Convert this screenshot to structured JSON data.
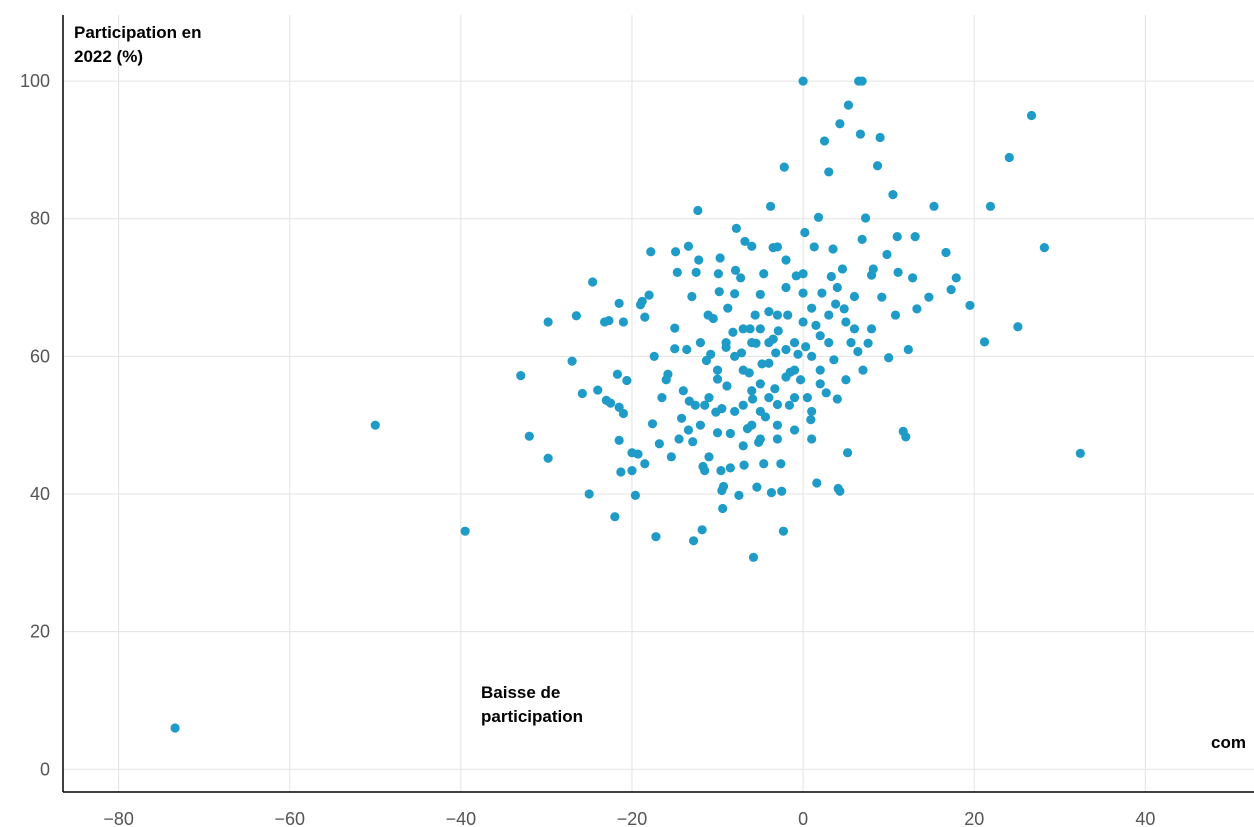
{
  "chart_data": {
    "type": "scatter",
    "y_label": [
      "Participation en",
      "2022 (%)"
    ],
    "annotations": [
      [
        "Baisse de",
        "participation"
      ],
      [
        "com"
      ]
    ],
    "color": "#1f9bc7",
    "grid": true,
    "xlim": [
      -86.5,
      52.7
    ],
    "ylim": [
      -3.3,
      109.6
    ],
    "xticks": [
      {
        "value": -80,
        "label": "−80"
      },
      {
        "value": -60,
        "label": "−60"
      },
      {
        "value": -40,
        "label": "−40"
      },
      {
        "value": -20,
        "label": "−20"
      },
      0,
      20,
      40
    ],
    "yticks": [
      0,
      20,
      40,
      60,
      80,
      100
    ],
    "x": [
      -73.4,
      -50,
      -39.5,
      -33,
      -32,
      -29.8,
      -29.8,
      -27,
      -26.5,
      -25.8,
      -25,
      -24.6,
      -24,
      -23.2,
      -23,
      -22.7,
      -22.5,
      -22,
      -21.7,
      -21.5,
      -21.5,
      -21.3,
      -21.5,
      -21,
      -21,
      -20.6,
      -20,
      -20,
      -19.6,
      -19.3,
      -19,
      -18.8,
      -18.5,
      -18.5,
      -18,
      -17.8,
      -17.6,
      -17.4,
      -17.2,
      -16.8,
      -16.5,
      -16,
      -15.8,
      -15.4,
      -15,
      -15,
      -14.9,
      -14.7,
      -14.5,
      -14.2,
      -14,
      -13.6,
      -13.4,
      -13.4,
      -13.3,
      -13,
      -12.9,
      -12.8,
      -12.6,
      -12.5,
      -12.3,
      -12.2,
      -12,
      -11.8,
      -11.7,
      -11.5,
      -11.5,
      -11.3,
      -11.1,
      -11,
      -10.8,
      -10.5,
      -10.2,
      -10,
      -10,
      -9.9,
      -9.8,
      -9.7,
      -9.6,
      -9.5,
      -9.5,
      -9.4,
      -9.3,
      -9,
      -8.9,
      -8.8,
      -8.5,
      -8.5,
      -8.2,
      -8,
      -7.9,
      -7.8,
      -7.5,
      -7.3,
      -7.2,
      -7,
      -6.9,
      -6.8,
      -6.5,
      -6.3,
      -6.2,
      -6,
      -5.9,
      -5.8,
      -5.6,
      -5.5,
      -5.4,
      -5.2,
      -5,
      -5,
      -4.8,
      -4.6,
      -4.6,
      -4.4,
      -4,
      -3.8,
      -3.7,
      -3.5,
      -3.5,
      -3.3,
      -3.2,
      -3,
      -3,
      -2.9,
      -2.6,
      -2.5,
      -2.3,
      -2.2,
      -2,
      -1.8,
      -1.6,
      -1.5,
      -1,
      -0.8,
      -0.6,
      -0.3,
      0,
      0,
      0.2,
      0.3,
      0.5,
      0.9,
      1,
      1.3,
      1.5,
      1.6,
      1.8,
      2.2,
      2.5,
      2.7,
      3,
      3.3,
      3.5,
      3.6,
      3.8,
      4,
      4.1,
      4.3,
      4.3,
      4.6,
      4.8,
      5,
      5.3,
      5.2,
      5.6,
      6,
      6.4,
      6.5,
      6.9,
      6.7,
      6.9,
      7.3,
      7.6,
      8,
      8.2,
      8.7,
      9,
      9.2,
      9.8,
      10,
      10.5,
      10.8,
      11,
      11.1,
      11.7,
      12,
      12.3,
      12.8,
      13.1,
      13.3,
      14.7,
      15.3,
      16.7,
      17.3,
      17.9,
      19.5,
      21.2,
      21.9,
      24.1,
      25.1,
      26.7,
      28.2,
      32.4,
      -8,
      -7,
      -6,
      -5,
      -4,
      -3,
      -2,
      -1,
      0,
      1,
      2,
      -9,
      -7,
      -6,
      -4,
      -3,
      -2,
      -1,
      0,
      1,
      2,
      3,
      -10,
      -11,
      -12,
      -8,
      -6,
      -5,
      -4,
      -2,
      3,
      4,
      5,
      6,
      7,
      8,
      -1,
      -3,
      -5,
      -7,
      1,
      2
    ],
    "values": [
      6,
      50,
      34.6,
      57.2,
      48.4,
      65,
      45.2,
      59.3,
      65.9,
      54.6,
      40,
      70.8,
      55.1,
      65,
      53.6,
      65.2,
      53.2,
      36.7,
      57.4,
      52.6,
      47.8,
      43.2,
      67.7,
      51.7,
      65,
      56.5,
      46,
      43.4,
      39.8,
      45.8,
      67.5,
      68,
      44.4,
      65.7,
      68.9,
      75.2,
      50.2,
      60,
      33.8,
      47.3,
      54,
      56.6,
      57.4,
      45.4,
      64.1,
      61.1,
      75.2,
      72.2,
      48,
      51,
      55,
      61,
      76,
      49.3,
      53.5,
      68.7,
      47.6,
      33.2,
      52.9,
      72.2,
      81.2,
      74,
      50,
      34.8,
      44,
      52.9,
      43.4,
      59.4,
      66,
      45.4,
      60.3,
      65.5,
      51.9,
      56.7,
      48.9,
      72,
      69.4,
      74.3,
      43.4,
      52.4,
      40.5,
      37.9,
      41.1,
      61.3,
      55.7,
      67,
      48.8,
      43.8,
      63.5,
      69.1,
      72.5,
      78.6,
      39.8,
      71.4,
      60.5,
      52.9,
      44.2,
      76.7,
      49.5,
      57.6,
      64,
      76,
      53.8,
      30.8,
      66,
      61.9,
      41,
      47.5,
      56,
      69,
      58.9,
      72,
      44.4,
      51.2,
      66.5,
      81.8,
      40.2,
      75.8,
      62.5,
      55.3,
      60.5,
      48,
      75.9,
      63.7,
      44.4,
      40.4,
      34.6,
      87.5,
      74,
      66,
      52.9,
      57.7,
      49.3,
      71.7,
      60.3,
      56.6,
      69.2,
      100,
      78,
      61.4,
      54,
      50.8,
      48,
      75.9,
      64.5,
      41.6,
      80.2,
      69.2,
      91.3,
      54.7,
      86.8,
      71.6,
      75.6,
      59.5,
      67.6,
      53.8,
      40.8,
      93.8,
      40.4,
      72.7,
      66.9,
      56.6,
      96.5,
      46,
      62,
      68.7,
      60.7,
      100,
      100,
      92.3,
      77,
      80.1,
      61.9,
      71.8,
      72.7,
      87.7,
      91.8,
      68.6,
      74.8,
      59.8,
      83.5,
      66,
      77.4,
      72.2,
      49.1,
      48.3,
      61,
      71.4,
      77.4,
      66.9,
      68.6,
      81.8,
      75.1,
      69.7,
      71.4,
      67.4,
      62.1,
      81.8,
      88.9,
      64.3,
      95,
      75.8,
      45.9,
      60,
      58,
      55,
      52,
      59,
      53,
      57,
      62,
      65,
      60,
      56,
      62,
      64,
      62,
      54,
      66,
      70,
      54,
      72,
      67,
      63,
      66,
      58,
      54,
      62,
      52,
      50,
      64,
      62,
      61,
      62,
      70,
      65,
      64,
      58,
      64,
      58,
      50,
      48,
      47,
      52,
      58
    ]
  }
}
